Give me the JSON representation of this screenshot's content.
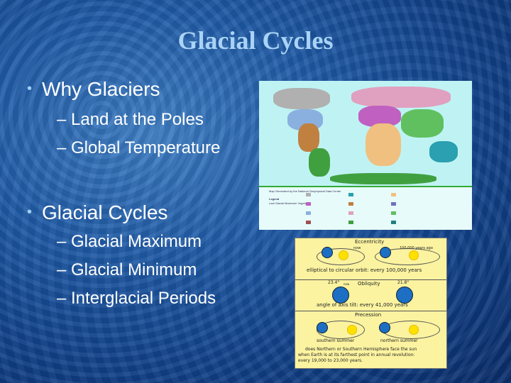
{
  "slide": {
    "title": "Glacial Cycles",
    "bullets": [
      {
        "label": "Why Glaciers",
        "sub": [
          "– Land at the Poles",
          "– Global Temperature"
        ]
      },
      {
        "label": "Glacial Cycles",
        "sub": [
          "– Glacial Maximum",
          "– Glacial Minimum",
          "– Interglacial Periods"
        ]
      }
    ]
  },
  "map_image": {
    "credit": "Map Generated by the National Geophysical Data Center",
    "legend_title": "Legend",
    "legend_subtitle": "Last Glacial Maximum Vegetation",
    "colors": [
      "#b0b0b0",
      "#c060c0",
      "#8ab0e0",
      "#a05050",
      "#2aa0b0",
      "#c08040",
      "#e0a0c0",
      "#40a040",
      "#f0c080",
      "#7070c0",
      "#60c060",
      "#208080"
    ]
  },
  "orbit_image": {
    "eccentricity": {
      "heading": "Eccentricity",
      "now": "now",
      "ago": "100,000 years ago",
      "caption": "elliptical to circular orbit: every 100,000 years"
    },
    "obliquity": {
      "heading": "Obliquity",
      "angle_now": "23.4°",
      "now": "now",
      "angle_past": "21.8°",
      "caption": "angle of axis tilt: every 41,000 years"
    },
    "precession": {
      "heading": "Precession",
      "south": "southern summer",
      "north": "northern summer",
      "caption": [
        "does Northern or Southern Hemisphere face the sun",
        "when Earth is at its farthest point in annual revolution:",
        "every 19,000 to 23,000 years."
      ]
    }
  }
}
